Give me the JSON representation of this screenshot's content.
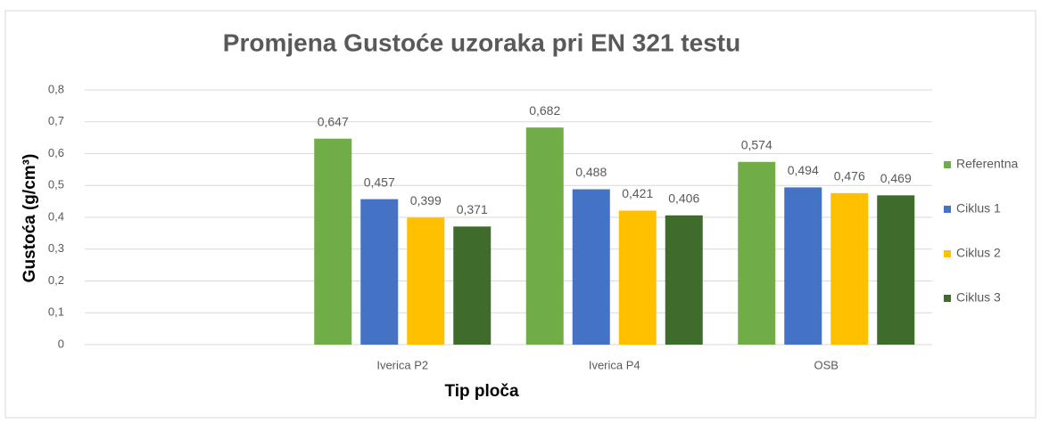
{
  "chart_data": {
    "type": "bar",
    "title": "Promjena Gustoće uzoraka pri EN 321 testu",
    "x_label": "Tip ploča",
    "y_label": "Gustoća (g/cm³)",
    "categories": [
      null,
      "Iverica P2",
      "Iverica P4",
      "OSB"
    ],
    "series": [
      {
        "name": "Referentna",
        "color": "#70ad47",
        "values": [
          null,
          0.647,
          0.682,
          0.574
        ],
        "value_labels": [
          null,
          "0,647",
          "0,682",
          "0,574"
        ]
      },
      {
        "name": "Ciklus 1",
        "color": "#4472c4",
        "values": [
          null,
          0.457,
          0.488,
          0.494
        ],
        "value_labels": [
          null,
          "0,457",
          "0,488",
          "0,494"
        ]
      },
      {
        "name": "Ciklus 2",
        "color": "#ffc000",
        "values": [
          null,
          0.399,
          0.421,
          0.476
        ],
        "value_labels": [
          null,
          "0,399",
          "0,421",
          "0,476"
        ]
      },
      {
        "name": "Ciklus 3",
        "color": "#3f6b2c",
        "values": [
          null,
          0.371,
          0.406,
          0.469
        ],
        "value_labels": [
          null,
          "0,371",
          "0,406",
          "0,469"
        ]
      }
    ],
    "ylim": [
      0,
      0.8
    ],
    "yticks": [
      0,
      {
        "value": 0.1,
        "label": "0,1"
      },
      {
        "value": 0.2,
        "label": "0,2"
      },
      {
        "value": 0.3,
        "label": "0,3"
      },
      {
        "value": 0.4,
        "label": "0,4"
      },
      {
        "value": 0.5,
        "label": "0,5"
      },
      {
        "value": 0.6,
        "label": "0,6"
      },
      {
        "value": 0.7,
        "label": "0,7"
      },
      {
        "value": 0.8,
        "label": "0,8"
      }
    ],
    "grid": true,
    "legend": "right"
  }
}
